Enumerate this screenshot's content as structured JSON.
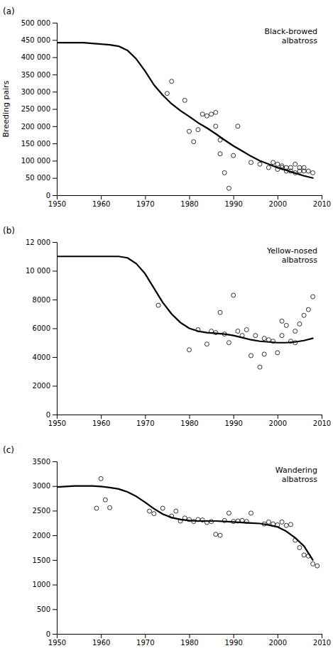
{
  "chart_data": [
    {
      "type": "line",
      "title": "Black-browed\nalbatross",
      "ylabel": "Breeding pairs",
      "annotations": [
        "(a)"
      ],
      "grid": false,
      "xlim": [
        1950,
        2010
      ],
      "xticks": [
        1950,
        1960,
        1970,
        1980,
        1990,
        2000,
        2010
      ],
      "ylim": [
        0,
        500000
      ],
      "yticks": [
        0,
        {
          "value": 50000,
          "label": "50 000"
        },
        {
          "value": 100000,
          "label": "100 000"
        },
        {
          "value": 150000,
          "label": "150 000"
        },
        {
          "value": 200000,
          "label": "200 000"
        },
        {
          "value": 250000,
          "label": "250 000"
        },
        {
          "value": 300000,
          "label": "300 000"
        },
        {
          "value": 350000,
          "label": "350 000"
        },
        {
          "value": 400000,
          "label": "400 000"
        },
        {
          "value": 450000,
          "label": "450 000"
        },
        {
          "value": 500000,
          "label": "500 000"
        }
      ],
      "series": [
        {
          "type": "line",
          "color": "#000000",
          "line_style": "solid",
          "x": [
            1950,
            1952,
            1954,
            1956,
            1958,
            1960,
            1962,
            1964,
            1966,
            1968,
            1970,
            1972,
            1974,
            1976,
            1978,
            1980,
            1982,
            1984,
            1986,
            1988,
            1990,
            1992,
            1994,
            1996,
            1998,
            2000,
            2002,
            2004,
            2006,
            2008
          ],
          "values": [
            442000,
            442000,
            442000,
            442000,
            440000,
            438000,
            436000,
            432000,
            420000,
            395000,
            360000,
            320000,
            290000,
            265000,
            245000,
            228000,
            210000,
            195000,
            178000,
            160000,
            143000,
            128000,
            113000,
            100000,
            90000,
            80000,
            72000,
            64000,
            56000,
            50000
          ]
        },
        {
          "type": "scatter",
          "color": "#000000",
          "marker": "open-circle",
          "x": [
            1975,
            1976,
            1979,
            1980,
            1981,
            1982,
            1983,
            1984,
            1985,
            1986,
            1986,
            1987,
            1987,
            1988,
            1989,
            1990,
            1991,
            1994,
            1996,
            1998,
            1999,
            2000,
            2000,
            2001,
            2001,
            2002,
            2002,
            2003,
            2003,
            2004,
            2004,
            2005,
            2005,
            2006,
            2006,
            2007,
            2008
          ],
          "values": [
            295000,
            330000,
            275000,
            185000,
            155000,
            190000,
            235000,
            230000,
            235000,
            240000,
            200000,
            160000,
            120000,
            65000,
            20000,
            115000,
            200000,
            95000,
            90000,
            80000,
            95000,
            90000,
            75000,
            85000,
            80000,
            80000,
            70000,
            80000,
            70000,
            90000,
            65000,
            80000,
            70000,
            70000,
            80000,
            70000,
            65000
          ]
        }
      ]
    },
    {
      "type": "line",
      "title": "Yellow-nosed\nalbatross",
      "annotations": [
        "(b)"
      ],
      "grid": false,
      "xlim": [
        1950,
        2010
      ],
      "xticks": [
        1950,
        1960,
        1970,
        1980,
        1990,
        2000,
        2010
      ],
      "ylim": [
        0,
        12000
      ],
      "yticks": [
        0,
        2000,
        4000,
        6000,
        8000,
        {
          "value": 10000,
          "label": "10 000"
        },
        {
          "value": 12000,
          "label": "12 000"
        }
      ],
      "series": [
        {
          "type": "line",
          "color": "#000000",
          "line_style": "solid",
          "x": [
            1950,
            1952,
            1954,
            1956,
            1958,
            1960,
            1962,
            1964,
            1966,
            1968,
            1970,
            1972,
            1974,
            1976,
            1978,
            1980,
            1982,
            1984,
            1986,
            1988,
            1990,
            1992,
            1994,
            1996,
            1998,
            2000,
            2002,
            2004,
            2006,
            2008
          ],
          "values": [
            11000,
            11000,
            11000,
            11000,
            11000,
            11000,
            11000,
            11000,
            10900,
            10500,
            9800,
            8800,
            7800,
            7000,
            6400,
            6000,
            5800,
            5700,
            5650,
            5600,
            5500,
            5350,
            5200,
            5100,
            5050,
            5000,
            5000,
            5050,
            5150,
            5300
          ]
        },
        {
          "type": "scatter",
          "color": "#000000",
          "marker": "open-circle",
          "x": [
            1973,
            1980,
            1982,
            1984,
            1985,
            1986,
            1987,
            1988,
            1989,
            1990,
            1991,
            1992,
            1993,
            1994,
            1995,
            1996,
            1997,
            1997,
            1998,
            1999,
            2000,
            2001,
            2001,
            2002,
            2003,
            2004,
            2004,
            2005,
            2006,
            2007,
            2008
          ],
          "values": [
            7600,
            4500,
            5900,
            4900,
            5800,
            5700,
            7100,
            5600,
            5000,
            8300,
            5800,
            5500,
            5900,
            4100,
            5500,
            3300,
            5300,
            4200,
            5200,
            5100,
            4300,
            6500,
            5500,
            6200,
            5100,
            5800,
            5000,
            6300,
            6900,
            7300,
            8200
          ]
        }
      ]
    },
    {
      "type": "line",
      "title": "Wandering\nalbatross",
      "annotations": [
        "(c)"
      ],
      "grid": false,
      "xlim": [
        1950,
        2010
      ],
      "xticks": [
        1950,
        1960,
        1970,
        1980,
        1990,
        2000,
        2010
      ],
      "ylim": [
        0,
        3500
      ],
      "yticks": [
        0,
        500,
        1000,
        1500,
        2000,
        2500,
        3000,
        3500
      ],
      "series": [
        {
          "type": "line",
          "color": "#000000",
          "line_style": "solid",
          "x": [
            1950,
            1952,
            1954,
            1956,
            1958,
            1960,
            1962,
            1964,
            1966,
            1968,
            1970,
            1972,
            1974,
            1976,
            1978,
            1980,
            1982,
            1984,
            1986,
            1988,
            1990,
            1992,
            1994,
            1996,
            1998,
            2000,
            2002,
            2004,
            2006,
            2008
          ],
          "values": [
            2980,
            2990,
            3000,
            3000,
            3000,
            2990,
            2970,
            2940,
            2880,
            2790,
            2670,
            2540,
            2430,
            2360,
            2320,
            2300,
            2290,
            2290,
            2290,
            2280,
            2270,
            2260,
            2250,
            2240,
            2210,
            2170,
            2080,
            1950,
            1780,
            1500
          ]
        },
        {
          "type": "scatter",
          "color": "#000000",
          "marker": "open-circle",
          "x": [
            1959,
            1960,
            1961,
            1962,
            1971,
            1972,
            1974,
            1976,
            1977,
            1978,
            1979,
            1980,
            1981,
            1982,
            1983,
            1984,
            1985,
            1986,
            1987,
            1988,
            1989,
            1990,
            1991,
            1992,
            1993,
            1994,
            1997,
            1998,
            1999,
            2000,
            2001,
            2002,
            2003,
            2004,
            2005,
            2006,
            2007,
            2008,
            2009
          ],
          "values": [
            2550,
            3150,
            2720,
            2560,
            2490,
            2440,
            2550,
            2390,
            2490,
            2290,
            2350,
            2320,
            2280,
            2320,
            2310,
            2260,
            2280,
            2020,
            2000,
            2300,
            2450,
            2280,
            2290,
            2300,
            2280,
            2450,
            2230,
            2270,
            2230,
            2210,
            2270,
            2200,
            2220,
            1900,
            1750,
            1600,
            1580,
            1420,
            1380
          ]
        }
      ]
    }
  ]
}
